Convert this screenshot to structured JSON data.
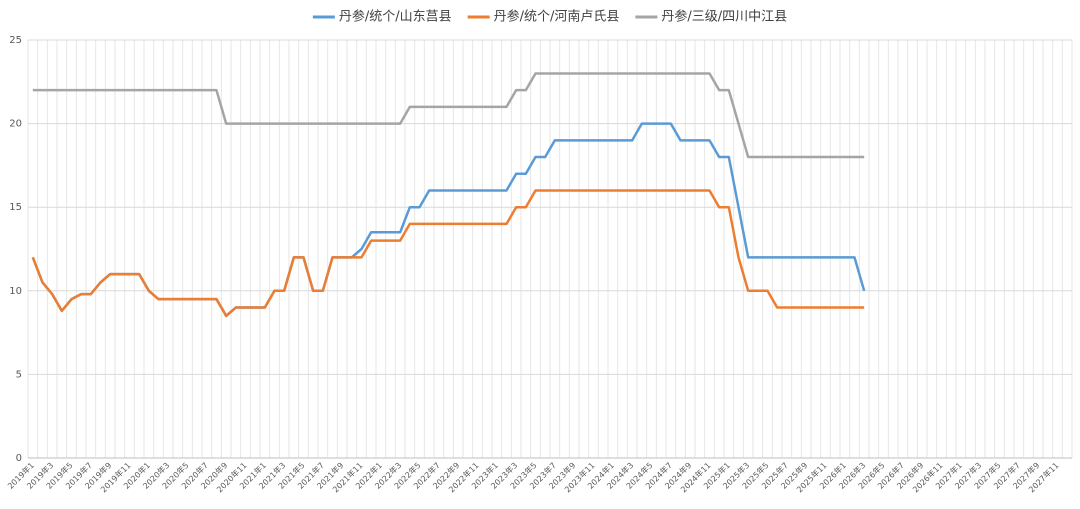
{
  "chart_data": {
    "type": "line",
    "categories": [
      "2019年1",
      null,
      "2019年3",
      null,
      "2019年5",
      null,
      "2019年7",
      null,
      "2019年9",
      null,
      "2019年11",
      null,
      "2020年1",
      null,
      "2020年3",
      null,
      "2020年5",
      null,
      "2020年7",
      null,
      "2020年9",
      null,
      "2020年11",
      null,
      "2021年1",
      null,
      "2021年3",
      null,
      "2021年5",
      null,
      "2021年7",
      null,
      "2021年9",
      null,
      "2021年11",
      null,
      "2022年1",
      null,
      "2022年3",
      null,
      "2022年5",
      null,
      "2022年7",
      null,
      "2022年9",
      null,
      "2022年11",
      null,
      "2023年1",
      null,
      "2023年3",
      null,
      "2023年5",
      null,
      "2023年7",
      null,
      "2023年9",
      null,
      "2023年11",
      null,
      "2024年1",
      null,
      "2024年3",
      null,
      "2024年5",
      null,
      "2024年7",
      null,
      "2024年9",
      null,
      "2024年11",
      null,
      "2025年1",
      null,
      "2025年3",
      null,
      "2025年5",
      null,
      "2025年7",
      null,
      "2025年9",
      null,
      "2025年11",
      null,
      "2026年1",
      null,
      "2026年3",
      null,
      "2026年5",
      null,
      "2026年7",
      null,
      "2026年9",
      null,
      "2026年11",
      null,
      "2027年1",
      null,
      "2027年3",
      null,
      "2027年5",
      null,
      "2027年7",
      null,
      "2027年9",
      null,
      "2027年11",
      null
    ],
    "series": [
      {
        "name": "丹参/统个/山东莒县",
        "color": "#5b9bd5",
        "values": [
          12,
          10.5,
          9.8,
          8.8,
          9.5,
          9.8,
          9.8,
          10.5,
          11,
          11,
          11,
          11,
          10,
          9.5,
          9.5,
          9.5,
          9.5,
          9.5,
          9.5,
          9.5,
          8.5,
          9,
          9,
          9,
          9,
          10,
          10,
          12,
          12,
          10,
          10,
          12,
          12,
          12,
          12.5,
          13.5,
          13.5,
          13.5,
          13.5,
          15,
          15,
          16,
          16,
          16,
          16,
          16,
          16,
          16,
          16,
          16,
          17,
          17,
          18,
          18,
          19,
          19,
          19,
          19,
          19,
          19,
          19,
          19,
          19,
          20,
          20,
          20,
          20,
          19,
          19,
          19,
          19,
          18,
          18,
          15,
          12,
          12,
          12,
          12,
          12,
          12,
          12,
          12,
          12,
          12,
          12,
          12,
          10,
          null,
          null,
          null,
          null,
          null,
          null,
          null,
          null,
          null,
          null,
          null,
          null,
          null,
          null,
          null,
          null,
          null,
          null,
          null,
          null,
          null
        ]
      },
      {
        "name": "丹参/统个/河南卢氏县",
        "color": "#ed7d31",
        "values": [
          12,
          10.5,
          9.8,
          8.8,
          9.5,
          9.8,
          9.8,
          10.5,
          11,
          11,
          11,
          11,
          10,
          9.5,
          9.5,
          9.5,
          9.5,
          9.5,
          9.5,
          9.5,
          8.5,
          9,
          9,
          9,
          9,
          10,
          10,
          12,
          12,
          10,
          10,
          12,
          12,
          12,
          12,
          13,
          13,
          13,
          13,
          14,
          14,
          14,
          14,
          14,
          14,
          14,
          14,
          14,
          14,
          14,
          15,
          15,
          16,
          16,
          16,
          16,
          16,
          16,
          16,
          16,
          16,
          16,
          16,
          16,
          16,
          16,
          16,
          16,
          16,
          16,
          16,
          15,
          15,
          12,
          10,
          10,
          10,
          9,
          9,
          9,
          9,
          9,
          9,
          9,
          9,
          9,
          9,
          null,
          null,
          null,
          null,
          null,
          null,
          null,
          null,
          null,
          null,
          null,
          null,
          null,
          null,
          null,
          null,
          null,
          null,
          null,
          null,
          null
        ]
      },
      {
        "name": "丹参/三级/四川中江县",
        "color": "#a5a5a5",
        "values": [
          22,
          22,
          22,
          22,
          22,
          22,
          22,
          22,
          22,
          22,
          22,
          22,
          22,
          22,
          22,
          22,
          22,
          22,
          22,
          22,
          20,
          20,
          20,
          20,
          20,
          20,
          20,
          20,
          20,
          20,
          20,
          20,
          20,
          20,
          20,
          20,
          20,
          20,
          20,
          21,
          21,
          21,
          21,
          21,
          21,
          21,
          21,
          21,
          21,
          21,
          22,
          22,
          23,
          23,
          23,
          23,
          23,
          23,
          23,
          23,
          23,
          23,
          23,
          23,
          23,
          23,
          23,
          23,
          23,
          23,
          23,
          22,
          22,
          20,
          18,
          18,
          18,
          18,
          18,
          18,
          18,
          18,
          18,
          18,
          18,
          18,
          18,
          null,
          null,
          null,
          null,
          null,
          null,
          null,
          null,
          null,
          null,
          null,
          null,
          null,
          null,
          null,
          null,
          null,
          null,
          null,
          null,
          null
        ]
      }
    ],
    "ylim": [
      0,
      25
    ],
    "yticks": [
      0,
      5,
      10,
      15,
      20,
      25
    ],
    "grid": true,
    "legend": "top"
  }
}
